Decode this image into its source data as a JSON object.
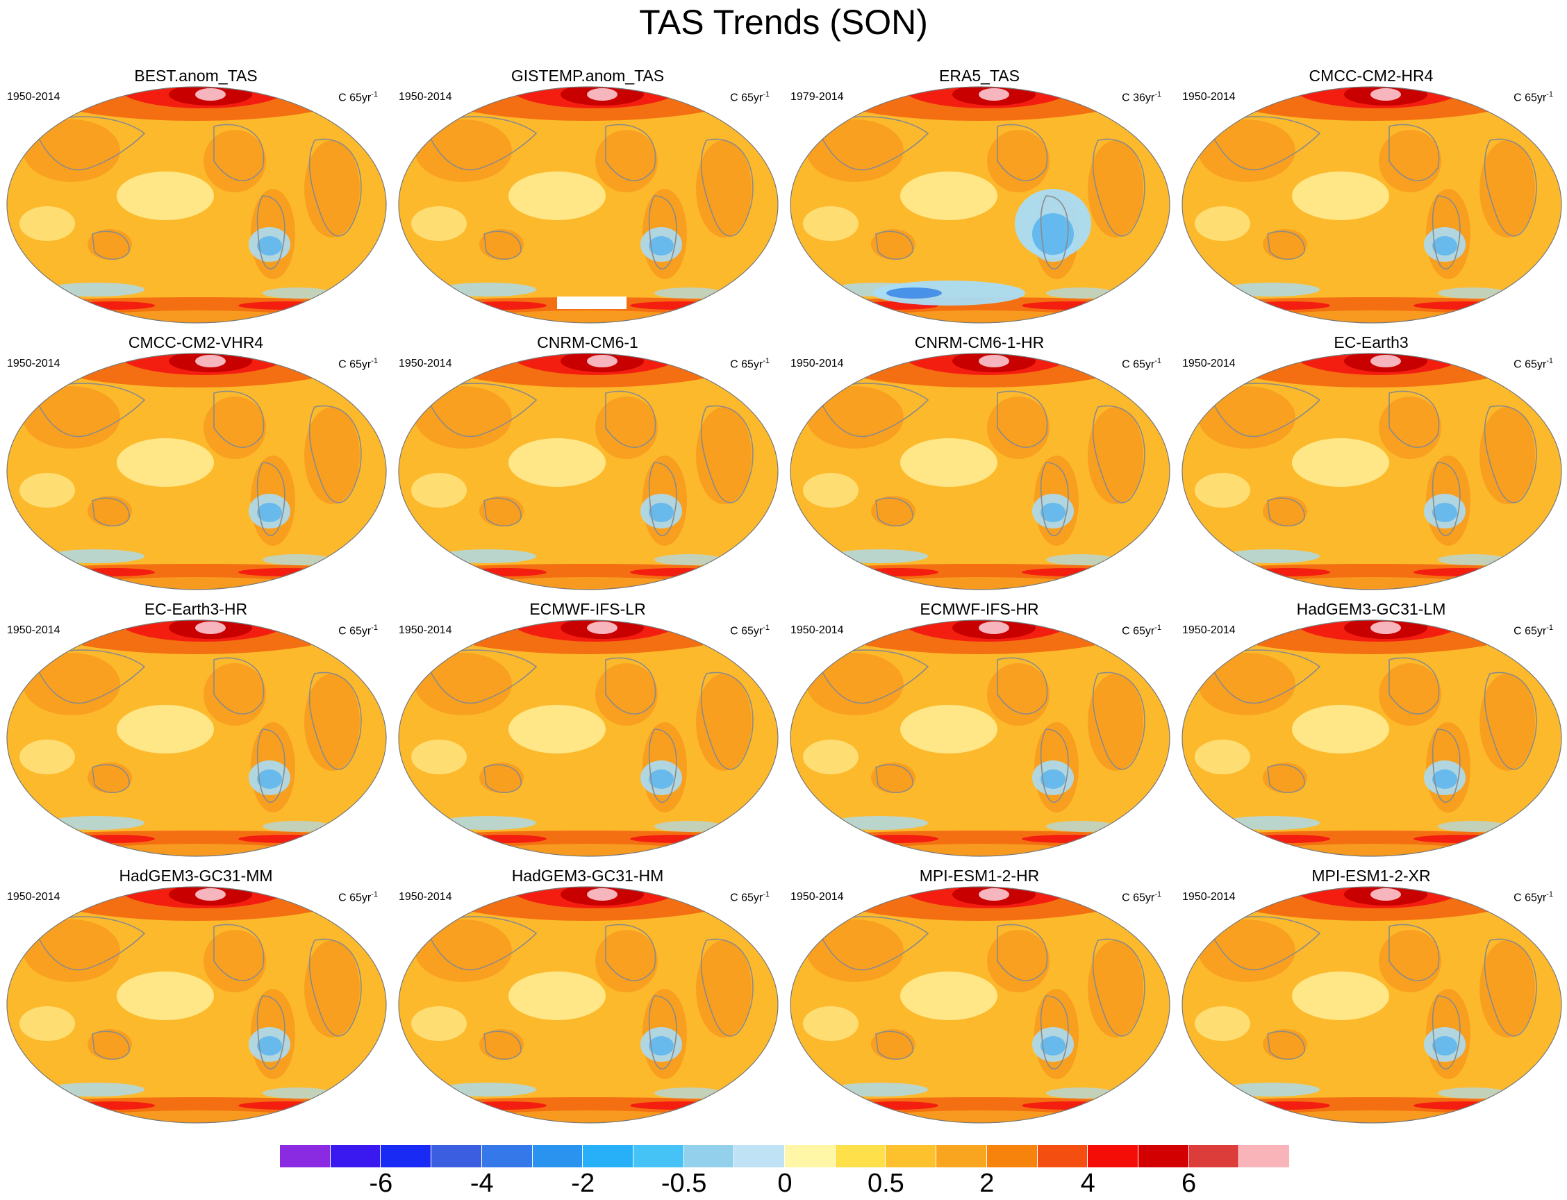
{
  "title": "TAS Trends (SON)",
  "units_prefix": "C ",
  "units_exp": "-1",
  "colors": {
    "ocean_base": "#fdb92c",
    "land_line": "#8a8a8a",
    "pale": "#fff5a4",
    "light_blue": "#a9dcf5",
    "mid_blue": "#60b7ee",
    "deep_blue": "#2f7fe6",
    "orange": "#f79a1f",
    "dark_orange": "#f46f12",
    "red": "#f41e10",
    "dark_red": "#c80000",
    "pink": "#f7b5bd"
  },
  "panels": [
    {
      "name": "BEST.anom_TAS",
      "period": "1950-2014",
      "units_main": "C 65yr",
      "missing": false
    },
    {
      "name": "GISTEMP.anom_TAS",
      "period": "1950-2014",
      "units_main": "C 65yr",
      "missing": true
    },
    {
      "name": "ERA5_TAS",
      "period": "1979-2014",
      "units_main": "C 36yr",
      "missing": false
    },
    {
      "name": "CMCC-CM2-HR4",
      "period": "1950-2014",
      "units_main": "C 65yr",
      "missing": false
    },
    {
      "name": "CMCC-CM2-VHR4",
      "period": "1950-2014",
      "units_main": "C 65yr",
      "missing": false
    },
    {
      "name": "CNRM-CM6-1",
      "period": "1950-2014",
      "units_main": "C 65yr",
      "missing": false
    },
    {
      "name": "CNRM-CM6-1-HR",
      "period": "1950-2014",
      "units_main": "C 65yr",
      "missing": false
    },
    {
      "name": "EC-Earth3",
      "period": "1950-2014",
      "units_main": "C 65yr",
      "missing": false
    },
    {
      "name": "EC-Earth3-HR",
      "period": "1950-2014",
      "units_main": "C 65yr",
      "missing": false
    },
    {
      "name": "ECMWF-IFS-LR",
      "period": "1950-2014",
      "units_main": "C 65yr",
      "missing": false
    },
    {
      "name": "ECMWF-IFS-HR",
      "period": "1950-2014",
      "units_main": "C 65yr",
      "missing": false
    },
    {
      "name": "HadGEM3-GC31-LM",
      "period": "1950-2014",
      "units_main": "C 65yr",
      "missing": false
    },
    {
      "name": "HadGEM3-GC31-MM",
      "period": "1950-2014",
      "units_main": "C 65yr",
      "missing": false
    },
    {
      "name": "HadGEM3-GC31-HM",
      "period": "1950-2014",
      "units_main": "C 65yr",
      "missing": false
    },
    {
      "name": "MPI-ESM1-2-HR",
      "period": "1950-2014",
      "units_main": "C 65yr",
      "missing": false
    },
    {
      "name": "MPI-ESM1-2-XR",
      "period": "1950-2014",
      "units_main": "C 65yr",
      "missing": false
    }
  ],
  "colorbar": {
    "colors": [
      "#8a2be2",
      "#3a19f0",
      "#1a2af5",
      "#3b5ee0",
      "#3578ea",
      "#2a93f0",
      "#27b0f7",
      "#45c3f7",
      "#93d0ec",
      "#bfe3f5",
      "#fff7a6",
      "#fde04a",
      "#fdc12e",
      "#f9a51f",
      "#f7830d",
      "#f44f10",
      "#f40d06",
      "#d20000",
      "#dc3c3a",
      "#f8b4b8"
    ],
    "tick_labels": [
      "-6",
      "-4",
      "-2",
      "-0.5",
      "0",
      "0.5",
      "2",
      "4",
      "6"
    ]
  }
}
